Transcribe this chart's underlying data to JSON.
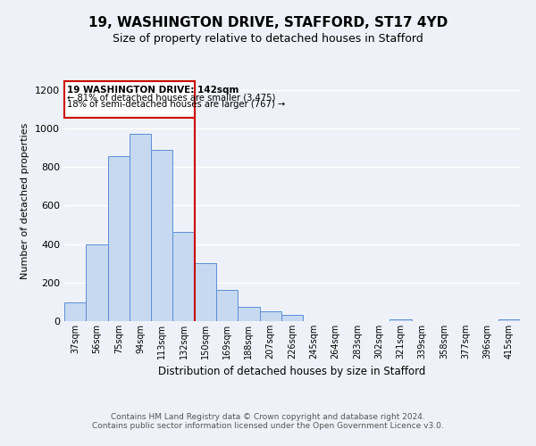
{
  "title_line1": "19, WASHINGTON DRIVE, STAFFORD, ST17 4YD",
  "title_line2": "Size of property relative to detached houses in Stafford",
  "xlabel": "Distribution of detached houses by size in Stafford",
  "ylabel": "Number of detached properties",
  "bar_labels": [
    "37sqm",
    "56sqm",
    "75sqm",
    "94sqm",
    "113sqm",
    "132sqm",
    "150sqm",
    "169sqm",
    "188sqm",
    "207sqm",
    "226sqm",
    "245sqm",
    "264sqm",
    "283sqm",
    "302sqm",
    "321sqm",
    "339sqm",
    "358sqm",
    "377sqm",
    "396sqm",
    "415sqm"
  ],
  "bar_values": [
    95,
    400,
    855,
    970,
    890,
    465,
    300,
    160,
    73,
    52,
    33,
    0,
    0,
    0,
    0,
    10,
    0,
    0,
    0,
    0,
    10
  ],
  "bar_color": "#c6d9f0",
  "bar_edge_color": "#5b8ed6",
  "vline_x": 5.5,
  "vline_color": "#cc0000",
  "annotation_title": "19 WASHINGTON DRIVE: 142sqm",
  "annotation_line1": "← 81% of detached houses are smaller (3,475)",
  "annotation_line2": "18% of semi-detached houses are larger (767) →",
  "annotation_box_color": "#cc0000",
  "ylim": [
    0,
    1250
  ],
  "yticks": [
    0,
    200,
    400,
    600,
    800,
    1000,
    1200
  ],
  "footer_line1": "Contains HM Land Registry data © Crown copyright and database right 2024.",
  "footer_line2": "Contains public sector information licensed under the Open Government Licence v3.0.",
  "bg_color": "#eef2f8",
  "grid_color": "#ffffff"
}
